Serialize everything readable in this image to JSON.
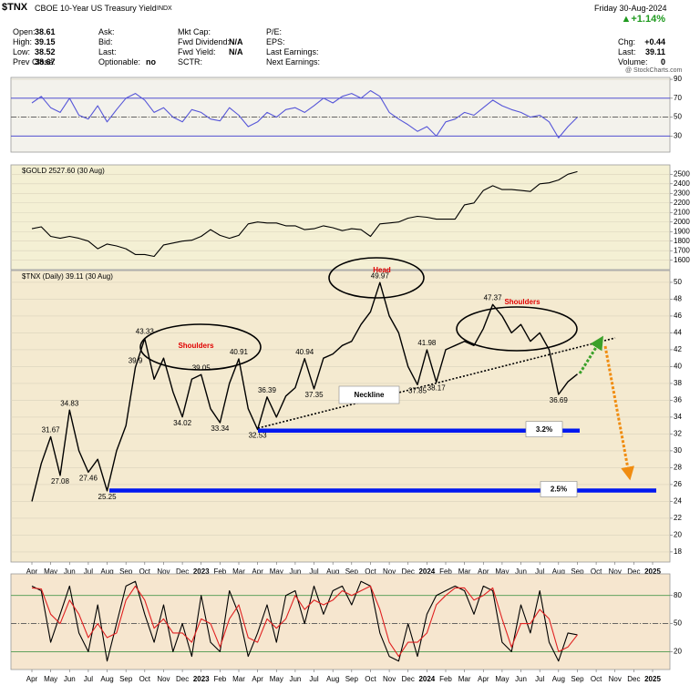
{
  "header": {
    "symbol": "$TNX",
    "name": "CBOE 10-Year US Treasury Yield",
    "exchange": "INDX",
    "date": "Friday 30-Aug-2024",
    "change": "▲+1.14%",
    "watermark": "@ StockCharts.com",
    "columns": [
      [
        {
          "label": "Open:",
          "value": "38.61"
        },
        {
          "label": "High:",
          "value": "39.15"
        },
        {
          "label": "Low:",
          "value": "38.52"
        },
        {
          "label": "Prev Close:",
          "value": "38.67"
        }
      ],
      [
        {
          "label": "Ask:"
        },
        {
          "label": "Bid:"
        },
        {
          "label": "Last:"
        },
        {
          "label": "Optionable:",
          "value": "no"
        }
      ],
      [
        {
          "label": "Mkt Cap:"
        },
        {
          "label": "Fwd Dividend:",
          "value": "N/A"
        },
        {
          "label": "Fwd Yield:",
          "value": "N/A"
        },
        {
          "label": "SCTR:"
        }
      ],
      [
        {
          "label": "P/E:"
        },
        {
          "label": "EPS:"
        },
        {
          "label": "Last Earnings:"
        },
        {
          "label": "Next Earnings:"
        }
      ],
      [
        {
          "label": "Chg:",
          "value": "+0.44"
        },
        {
          "label": "Last:",
          "value": "39.11"
        },
        {
          "label": "Volume:",
          "value": "0"
        }
      ]
    ]
  },
  "chart_data": [
    {
      "type": "line",
      "ylim": [
        13,
        92
      ],
      "yticks": [
        30,
        50,
        70,
        90
      ],
      "grid": true,
      "ref_lines": [
        70,
        50,
        30
      ],
      "ref_color": "#3a3ad0",
      "series": [
        {
          "color": "#5656d8",
          "values": [
            65,
            72,
            60,
            55,
            70,
            52,
            48,
            62,
            45,
            58,
            70,
            75,
            68,
            55,
            60,
            50,
            45,
            58,
            55,
            48,
            46,
            60,
            52,
            40,
            45,
            55,
            50,
            58,
            60,
            55,
            62,
            70,
            65,
            72,
            75,
            70,
            78,
            72,
            55,
            48,
            42,
            35,
            40,
            30,
            45,
            48,
            55,
            52,
            60,
            68,
            62,
            58,
            55,
            50,
            52,
            45,
            28,
            40,
            50,
            null,
            null,
            null,
            null,
            null,
            null,
            null,
            null,
            null
          ]
        }
      ]
    },
    {
      "type": "line",
      "title": "$GOLD 2527.60 (30 Aug)",
      "ylim": [
        1502,
        2598
      ],
      "yticks": [
        1600,
        1700,
        1800,
        1900,
        2000,
        2100,
        2200,
        2300,
        2400,
        2500
      ],
      "grid": true,
      "series": [
        {
          "color": "#000000",
          "values": [
            1930,
            1950,
            1850,
            1830,
            1850,
            1830,
            1800,
            1720,
            1770,
            1750,
            1720,
            1660,
            1660,
            1640,
            1760,
            1780,
            1800,
            1810,
            1850,
            1920,
            1860,
            1830,
            1860,
            1980,
            2000,
            1990,
            1990,
            1960,
            1960,
            1920,
            1930,
            1960,
            1940,
            1910,
            1930,
            1920,
            1850,
            1980,
            1990,
            2000,
            2040,
            2060,
            2050,
            2030,
            2030,
            2030,
            2180,
            2200,
            2330,
            2380,
            2340,
            2340,
            2330,
            2320,
            2400,
            2410,
            2440,
            2500,
            2527.6,
            null,
            null,
            null,
            null,
            null,
            null,
            null,
            null,
            null
          ]
        }
      ]
    },
    {
      "type": "line",
      "title": "$TNX (Daily) 39.11 (30 Aug)",
      "ylim": [
        16.8,
        51.4
      ],
      "yticks": [
        18,
        20,
        22,
        24,
        26,
        28,
        30,
        32,
        34,
        36,
        38,
        40,
        42,
        44,
        46,
        48,
        50
      ],
      "grid": true,
      "categories": [
        "Apr",
        null,
        "May",
        null,
        "Jun",
        null,
        "Jul",
        null,
        "Aug",
        null,
        "Sep",
        null,
        "Oct",
        null,
        "Nov",
        null,
        "Dec",
        null,
        "2023",
        null,
        "Feb",
        null,
        "Mar",
        null,
        "Apr",
        null,
        "May",
        null,
        "Jun",
        null,
        "Jul",
        null,
        "Aug",
        null,
        "Sep",
        null,
        "Oct",
        null,
        "Nov",
        null,
        "Dec",
        null,
        "2024",
        null,
        "Feb",
        null,
        "Mar",
        null,
        "Apr",
        null,
        "May",
        null,
        "Jun",
        null,
        "Jul",
        null,
        "Aug",
        null,
        "Sep",
        null,
        "Oct",
        null,
        "Nov",
        null,
        "Dec",
        null,
        "2025",
        null
      ],
      "series": [
        {
          "color": "#000000",
          "values": [
            24,
            28.5,
            31.67,
            27.08,
            34.83,
            30,
            27.46,
            29,
            25.25,
            30,
            33,
            39.9,
            43.33,
            38.5,
            41,
            37,
            34.02,
            38.5,
            39.05,
            35,
            33.34,
            38,
            40.91,
            35,
            32.53,
            36.39,
            34,
            36.5,
            37.5,
            40.94,
            37.35,
            41,
            41.5,
            42.5,
            43,
            45,
            46.5,
            49.97,
            46,
            44,
            40,
            37.85,
            41.98,
            38.17,
            42,
            42.5,
            43,
            42.5,
            44.5,
            47.37,
            46,
            44,
            45,
            43,
            44,
            42,
            36.69,
            38.2,
            39.11,
            null,
            null,
            null,
            null,
            null,
            null,
            null,
            null,
            null
          ],
          "value_labels": [
            null,
            null,
            "31.67",
            "27.08",
            "34.83",
            null,
            "27.46",
            null,
            "25.25",
            null,
            null,
            "39.9",
            "43.33",
            null,
            null,
            null,
            "34.02",
            null,
            "39.05",
            null,
            "33.34",
            null,
            "40.91",
            null,
            "32.53",
            "36.39",
            null,
            null,
            null,
            "40.94",
            "37.35",
            null,
            null,
            null,
            null,
            null,
            null,
            "49.97",
            null,
            null,
            null,
            "37.85",
            "41.98",
            "38.17",
            null,
            null,
            null,
            null,
            null,
            "47.37",
            null,
            null,
            null,
            null,
            null,
            null,
            "36.69",
            null,
            null,
            null,
            null,
            null,
            null,
            null,
            null,
            null,
            null,
            null
          ]
        }
      ],
      "levels": [
        {
          "value": 32.4,
          "label": "3.2%",
          "color": "#0018f0"
        },
        {
          "value": 25.29,
          "label": "2.5%",
          "color": "#0018f0"
        }
      ],
      "annotations": [
        {
          "text": "Shoulders",
          "color": "#e00000"
        },
        {
          "text": "Head",
          "color": "#e00000"
        },
        {
          "text": "Shoulders",
          "color": "#e00000"
        },
        {
          "text": "Neckline",
          "color": "#000000"
        }
      ]
    },
    {
      "type": "line",
      "ylim": [
        1,
        103
      ],
      "yticks": [
        20,
        50,
        80
      ],
      "grid": true,
      "ref_lines": [
        80,
        50,
        20
      ],
      "ref_color": "#4f9a4f",
      "categories": [
        "Apr",
        null,
        "May",
        null,
        "Jun",
        null,
        "Jul",
        null,
        "Aug",
        null,
        "Sep",
        null,
        "Oct",
        null,
        "Nov",
        null,
        "Dec",
        null,
        "2023",
        null,
        "Feb",
        null,
        "Mar",
        null,
        "Apr",
        null,
        "May",
        null,
        "Jun",
        null,
        "Jul",
        null,
        "Aug",
        null,
        "Sep",
        null,
        "Oct",
        null,
        "Nov",
        null,
        "Dec",
        null,
        "2024",
        null,
        "Feb",
        null,
        "Mar",
        null,
        "Apr",
        null,
        "May",
        null,
        "Jun",
        null,
        "Jul",
        null,
        "Aug",
        null,
        "Sep",
        null,
        "Oct",
        null,
        "Nov",
        null,
        "Dec",
        null,
        "2025",
        null
      ],
      "series": [
        {
          "color": "#000000",
          "values": [
            90,
            85,
            30,
            60,
            90,
            40,
            20,
            70,
            10,
            50,
            90,
            95,
            60,
            30,
            70,
            20,
            50,
            15,
            80,
            30,
            20,
            85,
            60,
            15,
            40,
            70,
            30,
            80,
            85,
            50,
            90,
            60,
            85,
            90,
            70,
            95,
            90,
            40,
            15,
            10,
            50,
            15,
            60,
            80,
            85,
            90,
            85,
            60,
            90,
            85,
            30,
            20,
            70,
            40,
            85,
            30,
            10,
            40,
            38,
            null,
            null,
            null,
            null,
            null,
            null,
            null,
            null,
            null
          ]
        },
        {
          "color": "#e02020",
          "values": [
            88,
            87,
            60,
            50,
            75,
            60,
            35,
            50,
            35,
            40,
            75,
            90,
            75,
            45,
            55,
            40,
            40,
            30,
            55,
            50,
            25,
            55,
            70,
            35,
            30,
            55,
            45,
            55,
            80,
            65,
            75,
            70,
            75,
            85,
            80,
            85,
            90,
            65,
            30,
            15,
            30,
            30,
            40,
            70,
            80,
            88,
            88,
            75,
            80,
            88,
            55,
            25,
            50,
            50,
            65,
            55,
            20,
            25,
            38,
            null,
            null,
            null,
            null,
            null,
            null,
            null,
            null,
            null
          ]
        }
      ]
    }
  ]
}
